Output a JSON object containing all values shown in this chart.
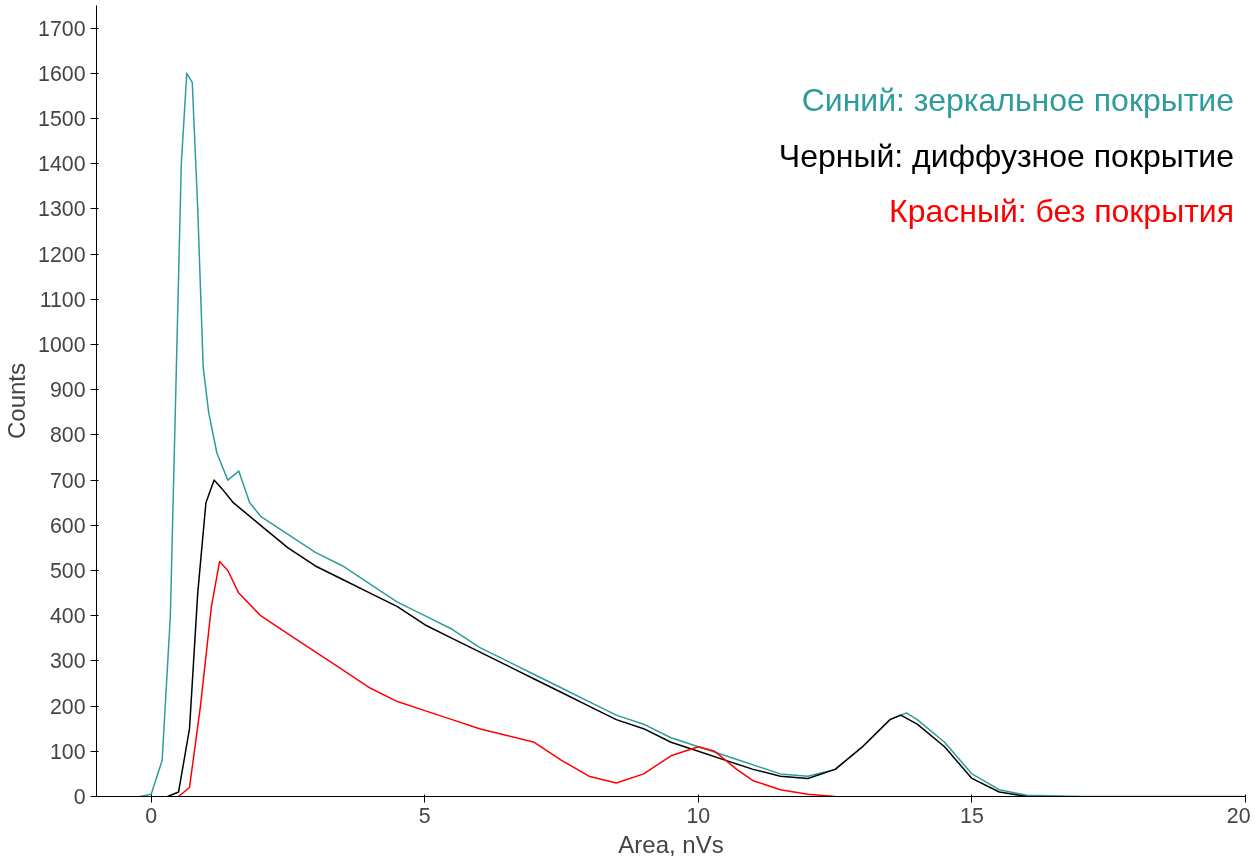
{
  "chart_data": {
    "type": "line",
    "xlabel": "Area, nVs",
    "ylabel": "Counts",
    "xlim": [
      -1,
      20
    ],
    "ylim": [
      0,
      1750
    ],
    "xticks": [
      0,
      5,
      10,
      15,
      20
    ],
    "yticks": [
      0,
      100,
      200,
      300,
      400,
      500,
      600,
      700,
      800,
      900,
      1000,
      1100,
      1200,
      1300,
      1400,
      1500,
      1600,
      1700
    ],
    "grid": false,
    "legend": "top right",
    "marker": "none",
    "line_style": "solid",
    "series": [
      {
        "name": "Синий: зеркальное покрытие",
        "color": "#2e9c9c",
        "x": [
          -0.2,
          0,
          0.2,
          0.35,
          0.45,
          0.55,
          0.65,
          0.75,
          0.85,
          0.95,
          1.05,
          1.2,
          1.4,
          1.6,
          1.8,
          2,
          2.5,
          3,
          3.5,
          4,
          4.5,
          5,
          5.5,
          6,
          6.5,
          7,
          7.5,
          8,
          8.5,
          9,
          9.5,
          10,
          10.5,
          11,
          11.5,
          12,
          12.5,
          13,
          13.5,
          13.8,
          14,
          14.5,
          15,
          15.5,
          16,
          17,
          20
        ],
        "values": [
          0,
          5,
          80,
          400,
          900,
          1400,
          1600,
          1580,
          1300,
          950,
          850,
          760,
          700,
          720,
          650,
          620,
          580,
          540,
          510,
          470,
          430,
          400,
          370,
          330,
          300,
          270,
          240,
          210,
          180,
          160,
          130,
          110,
          90,
          70,
          50,
          45,
          60,
          110,
          170,
          185,
          170,
          120,
          50,
          15,
          3,
          0,
          0
        ]
      },
      {
        "name": "Черный: диффузное покрытие",
        "color": "#000000",
        "x": [
          0.3,
          0.5,
          0.7,
          0.85,
          1.0,
          1.15,
          1.3,
          1.5,
          2,
          2.5,
          3,
          3.5,
          4,
          4.5,
          5,
          5.5,
          6,
          6.5,
          7,
          7.5,
          8,
          8.5,
          9,
          9.5,
          10,
          10.5,
          11,
          11.5,
          12,
          12.5,
          13,
          13.5,
          13.7,
          14,
          14.5,
          15,
          15.5,
          16
        ],
        "values": [
          0,
          10,
          150,
          450,
          650,
          700,
          680,
          650,
          600,
          550,
          510,
          480,
          450,
          420,
          380,
          350,
          320,
          290,
          260,
          230,
          200,
          170,
          150,
          120,
          100,
          80,
          60,
          45,
          40,
          60,
          110,
          170,
          180,
          160,
          110,
          40,
          10,
          0
        ]
      },
      {
        "name": "Красный: без покрытия",
        "color": "#ff0000",
        "x": [
          0.5,
          0.7,
          0.9,
          1.1,
          1.25,
          1.4,
          1.6,
          2,
          2.5,
          3,
          3.5,
          4,
          4.5,
          5,
          5.5,
          6,
          6.5,
          7,
          7.5,
          8,
          8.5,
          9,
          9.5,
          10,
          10.3,
          10.7,
          11,
          11.5,
          12,
          12.5
        ],
        "values": [
          0,
          20,
          200,
          420,
          520,
          500,
          450,
          400,
          360,
          320,
          280,
          240,
          210,
          190,
          170,
          150,
          135,
          120,
          80,
          45,
          30,
          50,
          90,
          110,
          100,
          60,
          35,
          15,
          5,
          0
        ]
      }
    ]
  }
}
